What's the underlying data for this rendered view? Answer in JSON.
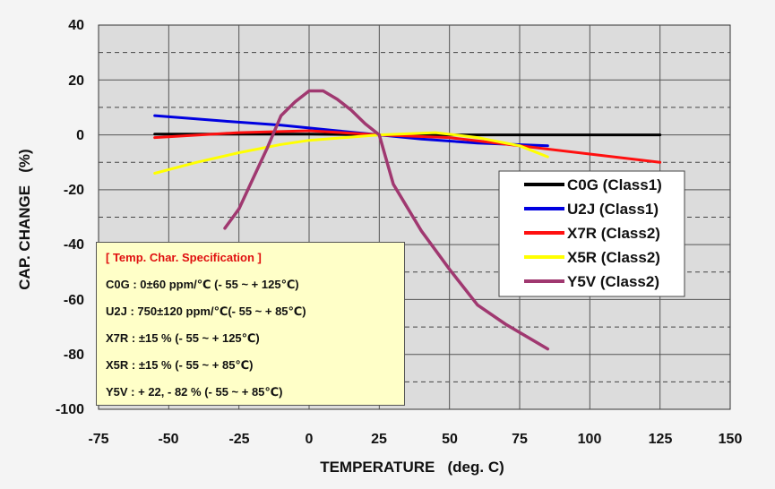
{
  "chart_data": {
    "type": "line",
    "xlabel": "TEMPERATURE   (deg. C)",
    "ylabel": "CAP. CHANGE   (%)",
    "xlim": [
      -75,
      150
    ],
    "ylim": [
      -100,
      40
    ],
    "xticks": [
      "-75",
      "-50",
      "-25",
      "0",
      "25",
      "50",
      "75",
      "100",
      "125",
      "150"
    ],
    "yticks": [
      "40",
      "20",
      "0",
      "-20",
      "-40",
      "-60",
      "-80",
      "-100"
    ],
    "grid": true,
    "legend_position": "right",
    "series": [
      {
        "name": "C0G (Class1)",
        "color": "#000000",
        "x": [
          -55,
          -25,
          0,
          25,
          50,
          75,
          100,
          125
        ],
        "y": [
          0.3,
          0.3,
          0.3,
          0,
          0,
          0,
          0,
          0
        ]
      },
      {
        "name": "U2J (Class1)",
        "color": "#0000e0",
        "x": [
          -55,
          -30,
          -10,
          10,
          25,
          40,
          60,
          85
        ],
        "y": [
          7,
          5,
          3.5,
          1.5,
          0,
          -1.5,
          -3,
          -4
        ]
      },
      {
        "name": "X7R (Class2)",
        "color": "#ff1010",
        "x": [
          -55,
          -25,
          0,
          25,
          50,
          75,
          100,
          125
        ],
        "y": [
          -1,
          0.8,
          1.5,
          0,
          -1,
          -4,
          -7,
          -10
        ]
      },
      {
        "name": "X5R (Class2)",
        "color": "#ffff00",
        "x": [
          -55,
          -40,
          -25,
          -10,
          0,
          10,
          25,
          45,
          60,
          75,
          85
        ],
        "y": [
          -14,
          -10,
          -6.5,
          -3.5,
          -2,
          -1.2,
          0,
          0.8,
          -1,
          -4,
          -8
        ]
      },
      {
        "name": "Y5V (Class2)",
        "color": "#a03870",
        "x": [
          -30,
          -25,
          -20,
          -15,
          -10,
          -5,
          0,
          5,
          10,
          15,
          20,
          25,
          30,
          40,
          50,
          60,
          70,
          85
        ],
        "y": [
          -34,
          -27,
          -16,
          -5,
          7,
          12,
          16,
          16,
          13,
          9,
          4,
          0,
          -18,
          -35,
          -49,
          -62,
          -69,
          -78
        ]
      }
    ]
  },
  "spec_box": {
    "title": "[ Temp. Char. Specification ]",
    "lines": [
      "C0G : 0±60 ppm/℃ (- 55  ~ + 125℃)",
      "U2J : 750±120 ppm/℃(- 55  ~ + 85℃)",
      "X7R : ±15 % (- 55  ~ + 125℃)",
      "X5R : ±15 % (- 55  ~ + 85℃)",
      "Y5V : + 22, - 82 % (- 55  ~ + 85℃)"
    ]
  },
  "colors": {
    "plot_background": "#dcdcdc",
    "spec_background": "#ffffc8",
    "spec_title": "#e01010"
  }
}
